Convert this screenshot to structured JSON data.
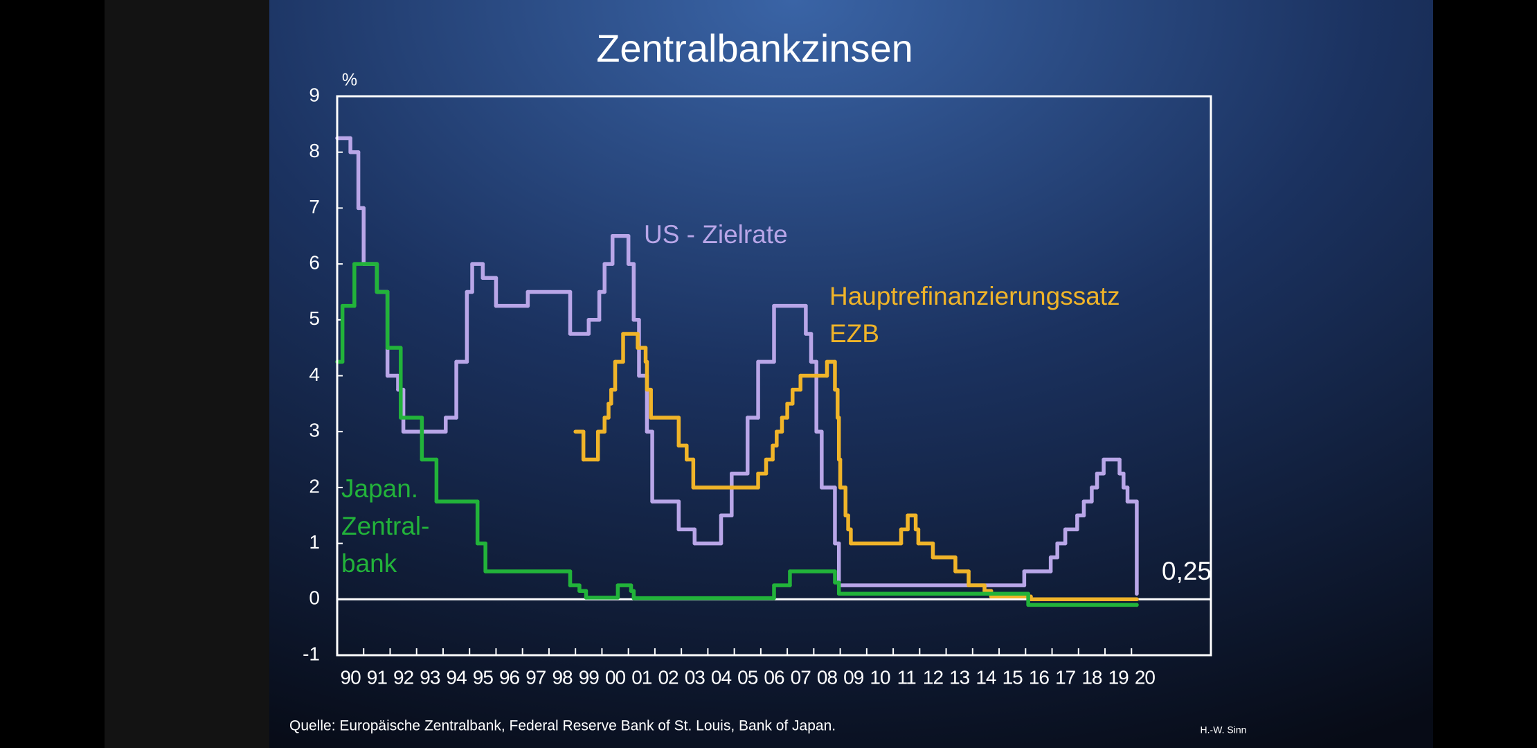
{
  "chart_data": {
    "type": "step",
    "title": "Zentralbankzinsen",
    "y_unit": "%",
    "source": "Quelle: Europäische Zentralbank, Federal Reserve Bank of St. Louis, Bank of Japan.",
    "author": "H.-W. Sinn",
    "annotation": "0,25",
    "xlim": [
      1990,
      2023
    ],
    "xticks": [
      {
        "value": 1990,
        "label": "90"
      },
      {
        "value": 1991,
        "label": "91"
      },
      {
        "value": 1992,
        "label": "92"
      },
      {
        "value": 1993,
        "label": "93"
      },
      {
        "value": 1994,
        "label": "94"
      },
      {
        "value": 1995,
        "label": "95"
      },
      {
        "value": 1996,
        "label": "96"
      },
      {
        "value": 1997,
        "label": "97"
      },
      {
        "value": 1998,
        "label": "98"
      },
      {
        "value": 1999,
        "label": "99"
      },
      {
        "value": 2000,
        "label": "00"
      },
      {
        "value": 2001,
        "label": "01"
      },
      {
        "value": 2002,
        "label": "02"
      },
      {
        "value": 2003,
        "label": "03"
      },
      {
        "value": 2004,
        "label": "04"
      },
      {
        "value": 2005,
        "label": "05"
      },
      {
        "value": 2006,
        "label": "06"
      },
      {
        "value": 2007,
        "label": "07"
      },
      {
        "value": 2008,
        "label": "08"
      },
      {
        "value": 2009,
        "label": "09"
      },
      {
        "value": 2010,
        "label": "10"
      },
      {
        "value": 2011,
        "label": "11"
      },
      {
        "value": 2012,
        "label": "12"
      },
      {
        "value": 2013,
        "label": "13"
      },
      {
        "value": 2014,
        "label": "14"
      },
      {
        "value": 2015,
        "label": "15"
      },
      {
        "value": 2016,
        "label": "16"
      },
      {
        "value": 2017,
        "label": "17"
      },
      {
        "value": 2018,
        "label": "18"
      },
      {
        "value": 2019,
        "label": "19"
      },
      {
        "value": 2020,
        "label": "20"
      }
    ],
    "ylim": [
      -1,
      9
    ],
    "yticks": [
      -1,
      0,
      1,
      2,
      3,
      4,
      5,
      6,
      7,
      8,
      9
    ],
    "series": [
      {
        "label": [
          "US - Zielrate"
        ],
        "color": "#b9a6e8",
        "x": [
          1990.0,
          1990.5,
          1990.8,
          1991.0,
          1991.5,
          1991.9,
          1992.3,
          1992.5,
          1994.1,
          1994.5,
          1994.9,
          1995.1,
          1995.5,
          1996.0,
          1997.2,
          1998.8,
          1999.5,
          1999.9,
          2000.1,
          2000.4,
          2001.0,
          2001.2,
          2001.4,
          2001.7,
          2001.9,
          2002.9,
          2003.5,
          2004.5,
          2004.9,
          2005.5,
          2005.9,
          2006.5,
          2007.7,
          2007.9,
          2008.1,
          2008.3,
          2008.8,
          2008.95,
          2015.95,
          2016.95,
          2017.2,
          2017.5,
          2017.95,
          2018.2,
          2018.5,
          2018.7,
          2018.95,
          2019.55,
          2019.7,
          2019.85,
          2020.2
        ],
        "values": [
          8.25,
          8.0,
          7.0,
          6.0,
          5.5,
          4.0,
          3.75,
          3.0,
          3.25,
          4.25,
          5.5,
          6.0,
          5.75,
          5.25,
          5.5,
          4.75,
          5.0,
          5.5,
          6.0,
          6.5,
          6.0,
          5.0,
          4.0,
          3.0,
          1.75,
          1.25,
          1.0,
          1.5,
          2.25,
          3.25,
          4.25,
          5.25,
          4.75,
          4.25,
          3.0,
          2.0,
          1.0,
          0.25,
          0.5,
          0.75,
          1.0,
          1.25,
          1.5,
          1.75,
          2.0,
          2.25,
          2.5,
          2.25,
          2.0,
          1.75,
          0.1
        ]
      },
      {
        "label": [
          "Hauptrefinanzierungssatz",
          "EZB"
        ],
        "color": "#f0b429",
        "x": [
          1999.0,
          1999.3,
          1999.85,
          2000.1,
          2000.25,
          2000.35,
          2000.5,
          2000.8,
          2001.35,
          2001.65,
          2001.7,
          2001.85,
          2002.9,
          2003.2,
          2003.45,
          2005.9,
          2006.2,
          2006.45,
          2006.6,
          2006.8,
          2007.0,
          2007.2,
          2007.5,
          2008.5,
          2008.8,
          2008.9,
          2008.95,
          2009.0,
          2009.2,
          2009.3,
          2009.4,
          2011.3,
          2011.55,
          2011.85,
          2011.95,
          2012.5,
          2013.35,
          2013.85,
          2014.45,
          2014.7,
          2016.2,
          2020.2
        ],
        "values": [
          3.0,
          2.5,
          3.0,
          3.25,
          3.5,
          3.75,
          4.25,
          4.75,
          4.5,
          4.25,
          3.75,
          3.25,
          2.75,
          2.5,
          2.0,
          2.25,
          2.5,
          2.75,
          3.0,
          3.25,
          3.5,
          3.75,
          4.0,
          4.25,
          3.75,
          3.25,
          2.5,
          2.0,
          1.5,
          1.25,
          1.0,
          1.25,
          1.5,
          1.25,
          1.0,
          0.75,
          0.5,
          0.25,
          0.15,
          0.05,
          0.0,
          0.0
        ]
      },
      {
        "label": [
          "Japan.",
          "Zentral-",
          "bank"
        ],
        "color": "#22b33a",
        "x": [
          1990.0,
          1990.2,
          1990.65,
          1991.5,
          1991.9,
          1992.4,
          1993.2,
          1993.75,
          1995.3,
          1995.6,
          1998.8,
          1999.15,
          1999.4,
          2000.6,
          2001.1,
          2001.2,
          2006.5,
          2007.1,
          2008.8,
          2008.95,
          2016.1,
          2020.2
        ],
        "values": [
          4.25,
          5.25,
          6.0,
          5.5,
          4.5,
          3.25,
          2.5,
          1.75,
          1.0,
          0.5,
          0.25,
          0.15,
          0.03,
          0.25,
          0.15,
          0.02,
          0.25,
          0.5,
          0.3,
          0.1,
          -0.1,
          -0.1
        ]
      }
    ]
  }
}
